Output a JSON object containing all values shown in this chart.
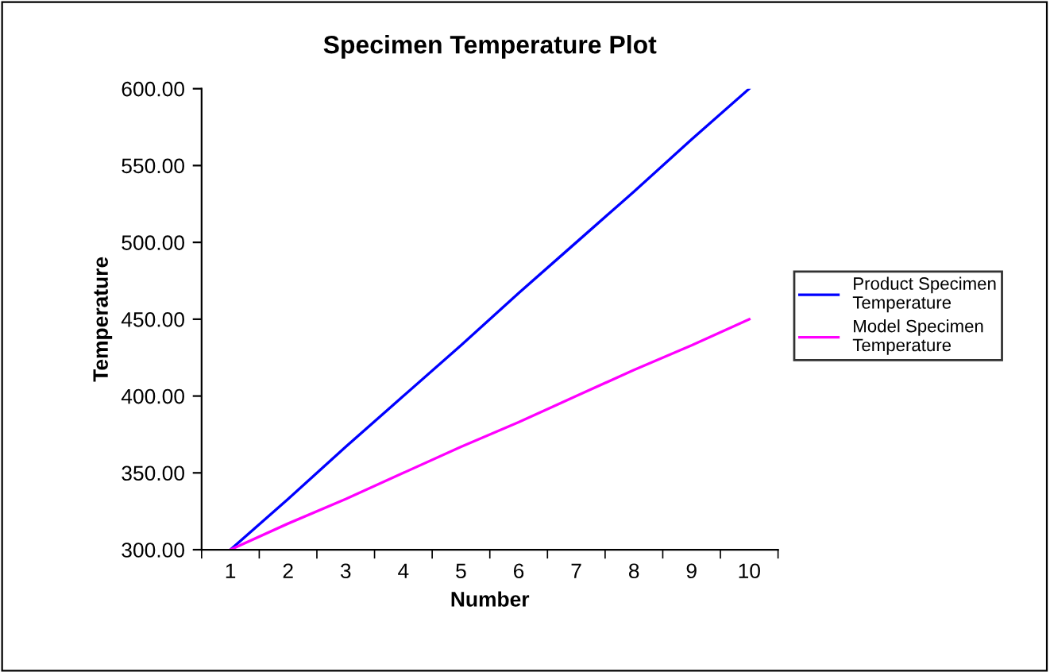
{
  "chart_data": {
    "type": "line",
    "title": "Specimen Temperature Plot",
    "xlabel": "Number",
    "ylabel": "Temperature",
    "categories": [
      "1",
      "2",
      "3",
      "4",
      "5",
      "6",
      "7",
      "8",
      "9",
      "10"
    ],
    "series": [
      {
        "name": "Product Specimen Temperature",
        "color": "#0000ff",
        "values": [
          300,
          333,
          367,
          400,
          433,
          467,
          500,
          533,
          567,
          600
        ]
      },
      {
        "name": "Model Specimen Temperature",
        "color": "#ff00ff",
        "values": [
          300,
          317,
          333,
          350,
          367,
          383,
          400,
          417,
          433,
          450
        ]
      }
    ],
    "ylim": [
      300,
      600
    ],
    "yticks": [
      {
        "value": 300,
        "label": "300.00"
      },
      {
        "value": 350,
        "label": "350.00"
      },
      {
        "value": 400,
        "label": "400.00"
      },
      {
        "value": 450,
        "label": "450.00"
      },
      {
        "value": 500,
        "label": "500.00"
      },
      {
        "value": 550,
        "label": "550.00"
      },
      {
        "value": 600,
        "label": "600.00"
      }
    ],
    "grid": false,
    "legend": "right",
    "marker": "none",
    "line_style": "solid"
  }
}
